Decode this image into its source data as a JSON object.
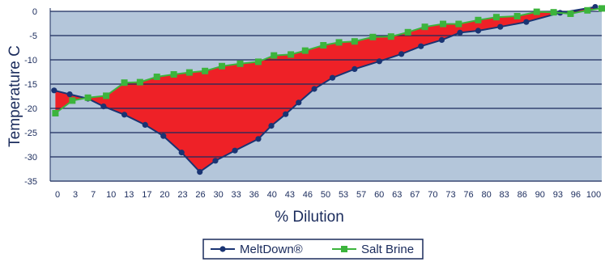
{
  "chart_data": {
    "type": "line",
    "title": "",
    "xlabel": "% Dilution",
    "ylabel": "Temperature C",
    "ylim": [
      -35,
      0
    ],
    "yticks": [
      0,
      -5,
      -10,
      -15,
      -20,
      -25,
      -30,
      -35
    ],
    "x_tick_labels": [
      "0",
      "3",
      "7",
      "10",
      "13",
      "17",
      "20",
      "23",
      "26",
      "30",
      "33",
      "36",
      "40",
      "43",
      "46",
      "50",
      "53",
      "57",
      "60",
      "63",
      "67",
      "70",
      "73",
      "76",
      "80",
      "83",
      "86",
      "90",
      "93",
      "96",
      "100"
    ],
    "grid": true,
    "legend": "bottom-center",
    "fill_between_series": true,
    "series": [
      {
        "name": "MeltDown®",
        "color": "#1a3473",
        "marker": "circle",
        "x": [
          1.5,
          7.5,
          14.5,
          20.5,
          28.5,
          36.5,
          43.5,
          50.5,
          57.5,
          63.5,
          71.0,
          80.0,
          85.0,
          90.5,
          95.5,
          101.5,
          108.5,
          117.0,
          126.5,
          135.0,
          142.5,
          150.5,
          157.5,
          164.5,
          173.0,
          183.0,
          196.0,
          209.5
        ],
        "y": [
          -16.3,
          -17.1,
          -18.0,
          -19.6,
          -21.3,
          -23.4,
          -25.7,
          -29.1,
          -33.1,
          -30.8,
          -28.7,
          -26.3,
          -23.6,
          -21.2,
          -18.8,
          -16.0,
          -13.7,
          -11.9,
          -10.3,
          -8.8,
          -7.2,
          -5.9,
          -4.4,
          -4.0,
          -3.2,
          -2.2,
          -0.3,
          0.9
        ]
      },
      {
        "name": "Salt Brine",
        "color": "#3cb43c",
        "marker": "square",
        "x": [
          2.0,
          8.5,
          14.5,
          21.5,
          28.5,
          34.5,
          41.0,
          47.5,
          53.5,
          59.5,
          66.0,
          73.0,
          80.0,
          86.0,
          92.5,
          98.0,
          105.0,
          111.0,
          117.0,
          124.0,
          131.0,
          137.5,
          144.0,
          151.0,
          157.0,
          164.5,
          171.5,
          179.5,
          187.0,
          193.5,
          200.0,
          206.5,
          212.0
        ],
        "y": [
          -21.0,
          -18.4,
          -17.8,
          -17.4,
          -14.7,
          -14.6,
          -13.5,
          -13.0,
          -12.6,
          -12.3,
          -11.3,
          -10.8,
          -10.4,
          -9.1,
          -8.9,
          -8.1,
          -7.0,
          -6.4,
          -6.2,
          -5.3,
          -5.2,
          -4.3,
          -3.2,
          -2.6,
          -2.6,
          -1.8,
          -1.2,
          -1.0,
          -0.1,
          -0.2,
          -0.5,
          0.2,
          0.6
        ]
      }
    ]
  }
}
